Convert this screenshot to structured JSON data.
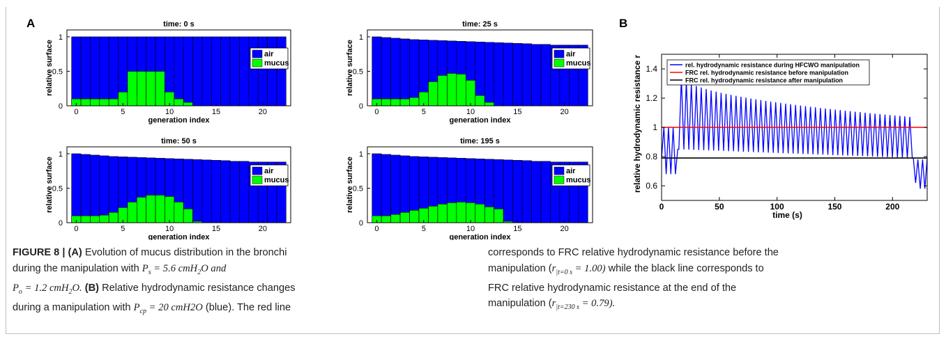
{
  "figure": {
    "panel_a_letter": "A",
    "panel_b_letter": "B"
  },
  "chart_data": [
    {
      "type": "bar",
      "panel": "A",
      "title": "time: 0 s",
      "xlabel": "generation index",
      "ylabel": "relative surface",
      "x": [
        0,
        1,
        2,
        3,
        4,
        5,
        6,
        7,
        8,
        9,
        10,
        11,
        12,
        13,
        14,
        15,
        16,
        17,
        18,
        19,
        20,
        21,
        22
      ],
      "xticks": [
        "0",
        "5",
        "10",
        "15",
        "20"
      ],
      "yticks": [
        "0",
        "0.5",
        "1"
      ],
      "ylim": [
        0,
        1.1
      ],
      "xlim": [
        -1,
        23
      ],
      "legend_position": "right",
      "series": [
        {
          "name": "air",
          "color": "#0000ff",
          "values": [
            1,
            1,
            1,
            1,
            1,
            1,
            1,
            1,
            1,
            1,
            1,
            1,
            1,
            1,
            1,
            1,
            1,
            1,
            1,
            1,
            1,
            1,
            1
          ]
        },
        {
          "name": "mucus",
          "color": "#00ff00",
          "values": [
            0.1,
            0.1,
            0.1,
            0.1,
            0.1,
            0.2,
            0.5,
            0.5,
            0.5,
            0.5,
            0.2,
            0.1,
            0.05,
            0,
            0,
            0,
            0,
            0,
            0,
            0,
            0,
            0,
            0
          ]
        }
      ]
    },
    {
      "type": "bar",
      "panel": "A",
      "title": "time: 25 s",
      "xlabel": "generation index",
      "ylabel": "relative surface",
      "x": [
        0,
        1,
        2,
        3,
        4,
        5,
        6,
        7,
        8,
        9,
        10,
        11,
        12,
        13,
        14,
        15,
        16,
        17,
        18,
        19,
        20,
        21,
        22
      ],
      "xticks": [
        "0",
        "5",
        "10",
        "15",
        "20"
      ],
      "yticks": [
        "0",
        "0.5",
        "1"
      ],
      "ylim": [
        0,
        1.1
      ],
      "xlim": [
        -1,
        23
      ],
      "legend_position": "right",
      "series": [
        {
          "name": "air",
          "color": "#0000ff",
          "values": [
            1.0,
            0.99,
            0.98,
            0.97,
            0.96,
            0.955,
            0.95,
            0.945,
            0.94,
            0.935,
            0.93,
            0.925,
            0.92,
            0.915,
            0.91,
            0.905,
            0.9,
            0.89,
            0.89,
            0.88,
            0.88,
            0.88,
            0.88
          ]
        },
        {
          "name": "mucus",
          "color": "#00ff00",
          "values": [
            0.1,
            0.1,
            0.1,
            0.1,
            0.12,
            0.2,
            0.35,
            0.44,
            0.47,
            0.46,
            0.37,
            0.15,
            0.05,
            0,
            0,
            0,
            0,
            0,
            0,
            0,
            0,
            0,
            0
          ]
        }
      ]
    },
    {
      "type": "bar",
      "panel": "A",
      "title": "time: 50 s",
      "xlabel": "generation index",
      "ylabel": "relative surface",
      "x": [
        0,
        1,
        2,
        3,
        4,
        5,
        6,
        7,
        8,
        9,
        10,
        11,
        12,
        13,
        14,
        15,
        16,
        17,
        18,
        19,
        20,
        21,
        22
      ],
      "xticks": [
        "0",
        "5",
        "10",
        "15",
        "20"
      ],
      "yticks": [
        "0",
        "0.5",
        "1"
      ],
      "ylim": [
        0,
        1.1
      ],
      "xlim": [
        -1,
        23
      ],
      "legend_position": "right",
      "series": [
        {
          "name": "air",
          "color": "#0000ff",
          "values": [
            1.0,
            0.99,
            0.98,
            0.97,
            0.96,
            0.955,
            0.95,
            0.945,
            0.94,
            0.935,
            0.93,
            0.925,
            0.92,
            0.915,
            0.91,
            0.905,
            0.9,
            0.89,
            0.89,
            0.88,
            0.88,
            0.88,
            0.88
          ]
        },
        {
          "name": "mucus",
          "color": "#00ff00",
          "values": [
            0.1,
            0.1,
            0.1,
            0.11,
            0.15,
            0.22,
            0.3,
            0.37,
            0.4,
            0.4,
            0.38,
            0.3,
            0.2,
            0.02,
            0,
            0,
            0,
            0,
            0,
            0,
            0,
            0,
            0
          ]
        }
      ]
    },
    {
      "type": "bar",
      "panel": "A",
      "title": "time: 195 s",
      "xlabel": "generation index",
      "ylabel": "relative surface",
      "x": [
        0,
        1,
        2,
        3,
        4,
        5,
        6,
        7,
        8,
        9,
        10,
        11,
        12,
        13,
        14,
        15,
        16,
        17,
        18,
        19,
        20,
        21,
        22
      ],
      "xticks": [
        "0",
        "5",
        "10",
        "15",
        "20"
      ],
      "yticks": [
        "0",
        "0.5",
        "1"
      ],
      "ylim": [
        0,
        1.1
      ],
      "xlim": [
        -1,
        23
      ],
      "legend_position": "right",
      "series": [
        {
          "name": "air",
          "color": "#0000ff",
          "values": [
            1.0,
            0.99,
            0.98,
            0.97,
            0.96,
            0.955,
            0.95,
            0.945,
            0.94,
            0.935,
            0.93,
            0.925,
            0.92,
            0.915,
            0.91,
            0.905,
            0.9,
            0.89,
            0.89,
            0.88,
            0.88,
            0.88,
            0.88
          ]
        },
        {
          "name": "mucus",
          "color": "#00ff00",
          "values": [
            0.1,
            0.1,
            0.12,
            0.15,
            0.18,
            0.21,
            0.24,
            0.27,
            0.29,
            0.3,
            0.29,
            0.27,
            0.23,
            0.2,
            0.02,
            0,
            0,
            0,
            0,
            0,
            0,
            0,
            0
          ]
        }
      ]
    },
    {
      "type": "line",
      "panel": "B",
      "xlabel": "time (s)",
      "ylabel": "relative hydrodynamic resistance r",
      "xlim": [
        0,
        230
      ],
      "ylim": [
        0.5,
        1.5
      ],
      "xticks": [
        "0",
        "50",
        "100",
        "150",
        "200"
      ],
      "yticks": [
        "0.6",
        "0.8",
        "1",
        "1.2",
        "1.4"
      ],
      "legend_position": "top",
      "oscillation": {
        "start": 15,
        "end": 218,
        "period": 4.3,
        "peak_start": 1.38,
        "peak_end": 1.07,
        "trough_start": 0.85,
        "trough_end": 0.79
      },
      "series": [
        {
          "name": "rel. hydrodynamic resistance during HFCWO manipulation",
          "color": "#0000ff",
          "x": [
            0,
            2,
            4,
            6,
            8,
            10,
            12,
            14,
            218,
            220,
            222,
            224,
            226,
            228,
            230
          ],
          "y": [
            0.79,
            1.0,
            0.68,
            1.0,
            0.68,
            1.0,
            0.68,
            0.85,
            0.79,
            0.62,
            0.78,
            0.58,
            0.78,
            0.58,
            0.79
          ]
        },
        {
          "name": "FRC rel. hydrodynamic resistance before manipulation",
          "color": "#ff0000",
          "x": [
            0,
            230
          ],
          "y": [
            1.0,
            1.0
          ]
        },
        {
          "name": "FRC rel. hydrodynamic resistance after manipulation",
          "color": "#000000",
          "x": [
            0,
            230
          ],
          "y": [
            0.79,
            0.79
          ]
        }
      ]
    }
  ],
  "caption": {
    "label": "FIGURE 8 |",
    "a_tag": "(A)",
    "a_text_1": "Evolution of mucus distribution in the bronchi",
    "a_text_2": "during the manipulation with",
    "ps": "P",
    "ps_sub": "s",
    "ps_val": " = 5.6  cmH",
    "ps_sub2": "2",
    "ps_end": "O  and",
    "po": "P",
    "po_sub": "o",
    "po_val": " = 1.2  cmH",
    "po_sub2": "2",
    "po_end": "O.",
    "b_tag": "(B)",
    "b_text_1": "Relative hydrodynamic resistance changes",
    "b_text_2": "during a manipulation with",
    "pcp": "P",
    "pcp_sub": "cp",
    "pcp_val": " = 20  cmH2O",
    "b_text_3": "(blue). The red line",
    "right_1": "corresponds to FRC relative hydrodynamic resistance before the",
    "right_2a": "manipulation (",
    "right_2_r": "r",
    "right_2_sub": "|t=0 s",
    "right_2_val": " = 1.00)",
    "right_2b": "while the black line corresponds to",
    "right_3": "FRC relative hydrodynamic resistance at the end of the",
    "right_4a": "manipulation (",
    "right_4_r": "r",
    "right_4_sub": "|t=230 s",
    "right_4_val": " = 0.79)."
  }
}
